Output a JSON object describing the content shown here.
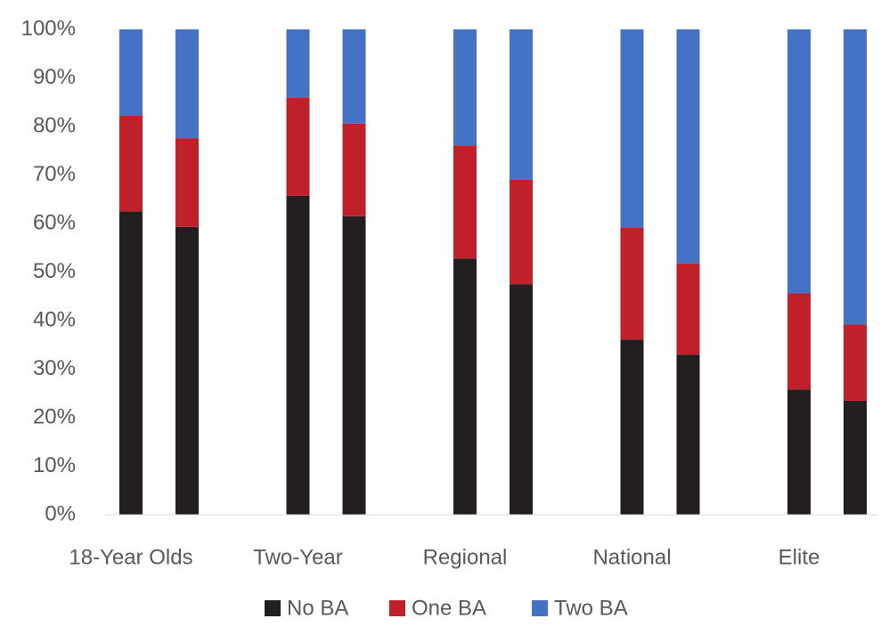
{
  "chart_data": {
    "type": "stacked_bar",
    "categories": [
      "18-Year Olds",
      null,
      "Two-Year",
      null,
      "Regional",
      null,
      "National",
      null,
      "Elite",
      null
    ],
    "series": [
      {
        "name": "No BA",
        "color": "#231f20",
        "values": [
          62.5,
          59.3,
          65.7,
          61.5,
          52.8,
          47.5,
          36.1,
          33.0,
          25.8,
          23.5
        ]
      },
      {
        "name": "One BA",
        "color": "#c0202a",
        "values": [
          19.7,
          18.3,
          20.3,
          19.1,
          23.3,
          21.5,
          23.1,
          18.8,
          19.8,
          15.7
        ]
      },
      {
        "name": "Two BA",
        "color": "#4472c4",
        "values": [
          17.8,
          22.4,
          14.0,
          19.4,
          23.9,
          31.0,
          40.8,
          48.2,
          54.4,
          60.8
        ]
      }
    ],
    "ylim": [
      0,
      100
    ],
    "yticks": [
      {
        "value": 0,
        "label": "0%"
      },
      {
        "value": 10,
        "label": "10%"
      },
      {
        "value": 20,
        "label": "20%"
      },
      {
        "value": 30,
        "label": "30%"
      },
      {
        "value": 40,
        "label": "40%"
      },
      {
        "value": 50,
        "label": "50%"
      },
      {
        "value": 60,
        "label": "60%"
      },
      {
        "value": 70,
        "label": "70%"
      },
      {
        "value": 80,
        "label": "80%"
      },
      {
        "value": 90,
        "label": "90%"
      },
      {
        "value": 100,
        "label": "100%"
      }
    ],
    "grid": false,
    "legend": "bottom"
  }
}
